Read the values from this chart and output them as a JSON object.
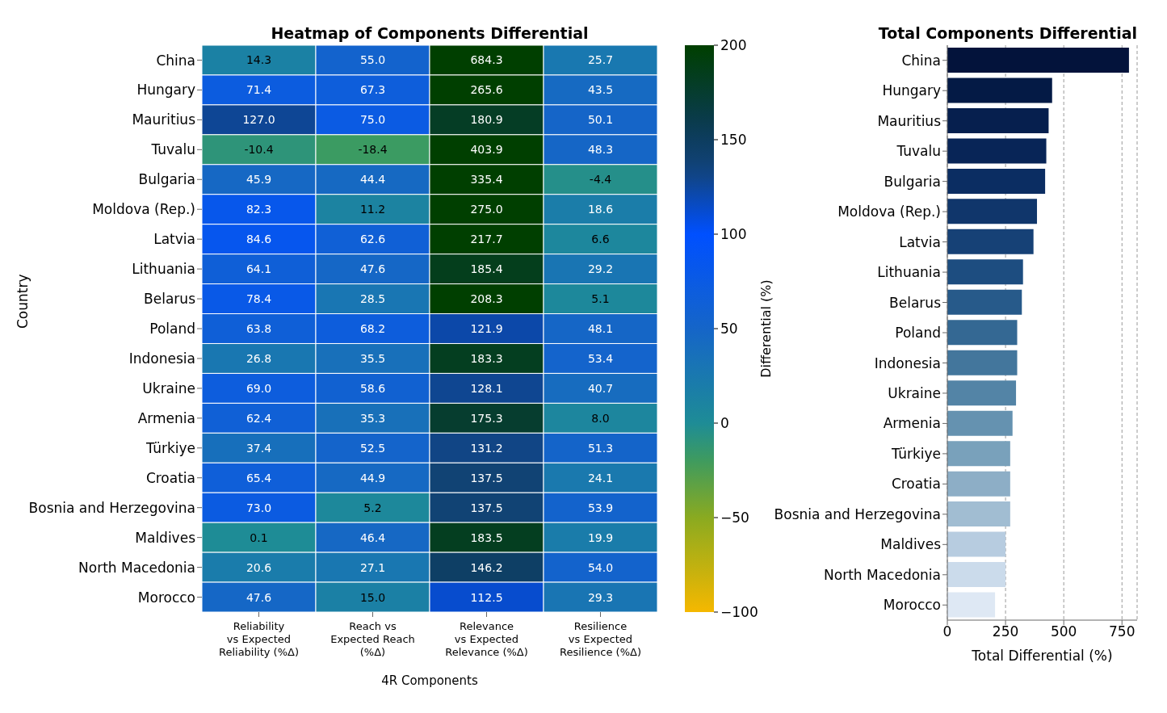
{
  "chart_data": [
    {
      "type": "heatmap",
      "title": "Heatmap of Components Differential",
      "xlabel": "4R Components",
      "ylabel": "Country",
      "clabel": "Differential (%)",
      "categories": [
        "Reliability\nvs Expected\nReliability (%Δ)",
        "Reach vs\nExpected Reach\n(%Δ)",
        "Relevance\nvs Expected\nRelevance (%Δ)",
        "Resilience\nvs Expected\nResilience (%Δ)"
      ],
      "y_categories": [
        "China",
        "Hungary",
        "Mauritius",
        "Tuvalu",
        "Bulgaria",
        "Moldova (Rep.)",
        "Latvia",
        "Lithuania",
        "Belarus",
        "Poland",
        "Indonesia",
        "Ukraine",
        "Armenia",
        "Türkiye",
        "Croatia",
        "Bosnia and Herzegovina",
        "Maldives",
        "North Macedonia",
        "Morocco"
      ],
      "cells": [
        [
          14.3,
          55.0,
          684.3,
          25.7
        ],
        [
          71.4,
          67.3,
          265.6,
          43.5
        ],
        [
          127.0,
          75.0,
          180.9,
          50.1
        ],
        [
          -10.4,
          -18.4,
          403.9,
          48.3
        ],
        [
          45.9,
          44.4,
          335.4,
          -4.4
        ],
        [
          82.3,
          11.2,
          275.0,
          18.6
        ],
        [
          84.6,
          62.6,
          217.7,
          6.6
        ],
        [
          64.1,
          47.6,
          185.4,
          29.2
        ],
        [
          78.4,
          28.5,
          208.3,
          5.1
        ],
        [
          63.8,
          68.2,
          121.9,
          48.1
        ],
        [
          26.8,
          35.5,
          183.3,
          53.4
        ],
        [
          69.0,
          58.6,
          128.1,
          40.7
        ],
        [
          62.4,
          35.3,
          175.3,
          8.0
        ],
        [
          37.4,
          52.5,
          131.2,
          51.3
        ],
        [
          65.4,
          44.9,
          137.5,
          24.1
        ],
        [
          73.0,
          5.2,
          137.5,
          53.9
        ],
        [
          0.1,
          46.4,
          183.5,
          19.9
        ],
        [
          20.6,
          27.1,
          146.2,
          54.0
        ],
        [
          47.6,
          15.0,
          112.5,
          29.3
        ]
      ],
      "cell_labels": [
        [
          "14.3",
          "55.0",
          "684.3",
          "25.7"
        ],
        [
          "71.4",
          "67.3",
          "265.6",
          "43.5"
        ],
        [
          "127.0",
          "75.0",
          "180.9",
          "50.1"
        ],
        [
          "-10.4",
          "-18.4",
          "403.9",
          "48.3"
        ],
        [
          "45.9",
          "44.4",
          "335.4",
          "-4.4"
        ],
        [
          "82.3",
          "11.2",
          "275.0",
          "18.6"
        ],
        [
          "84.6",
          "62.6",
          "217.7",
          "6.6"
        ],
        [
          "64.1",
          "47.6",
          "185.4",
          "29.2"
        ],
        [
          "78.4",
          "28.5",
          "208.3",
          "5.1"
        ],
        [
          "63.8",
          "68.2",
          "121.9",
          "48.1"
        ],
        [
          "26.8",
          "35.5",
          "183.3",
          "53.4"
        ],
        [
          "69.0",
          "58.6",
          "128.1",
          "40.7"
        ],
        [
          "62.4",
          "35.3",
          "175.3",
          "8.0"
        ],
        [
          "37.4",
          "52.5",
          "131.2",
          "51.3"
        ],
        [
          "65.4",
          "44.9",
          "137.5",
          "24.1"
        ],
        [
          "73.0",
          "5.2",
          "137.5",
          "53.9"
        ],
        [
          "0.1",
          "46.4",
          "183.5",
          "19.9"
        ],
        [
          "20.6",
          "27.1",
          "146.2",
          "54.0"
        ],
        [
          "47.6",
          "15.0",
          "112.5",
          "29.3"
        ]
      ],
      "clim": [
        -100,
        200
      ],
      "cticks": [
        -100,
        -50,
        0,
        50,
        100,
        150,
        200
      ]
    },
    {
      "type": "bar",
      "orientation": "horizontal",
      "title": "Total Components Differential",
      "xlabel": "Total Differential (%)",
      "categories": [
        "China",
        "Hungary",
        "Mauritius",
        "Tuvalu",
        "Bulgaria",
        "Moldova (Rep.)",
        "Latvia",
        "Lithuania",
        "Belarus",
        "Poland",
        "Indonesia",
        "Ukraine",
        "Armenia",
        "Türkiye",
        "Croatia",
        "Bosnia and Herzegovina",
        "Maldives",
        "North Macedonia",
        "Morocco"
      ],
      "values": [
        780,
        450,
        435,
        425,
        420,
        385,
        370,
        325,
        320,
        300,
        300,
        295,
        280,
        270,
        270,
        270,
        250,
        250,
        205
      ],
      "colors": [
        "#03133b",
        "#041a45",
        "#061f4e",
        "#082557",
        "#0b2d62",
        "#10366b",
        "#164176",
        "#1d4d80",
        "#275a8a",
        "#346893",
        "#43769c",
        "#5384a6",
        "#6592b0",
        "#79a1bb",
        "#8daec6",
        "#a1bdd2",
        "#b7cce0",
        "#cbdbeb",
        "#dee8f4"
      ],
      "xlim": [
        0,
        815
      ],
      "xticks": [
        0,
        250,
        500,
        750
      ],
      "grid": "x"
    }
  ]
}
